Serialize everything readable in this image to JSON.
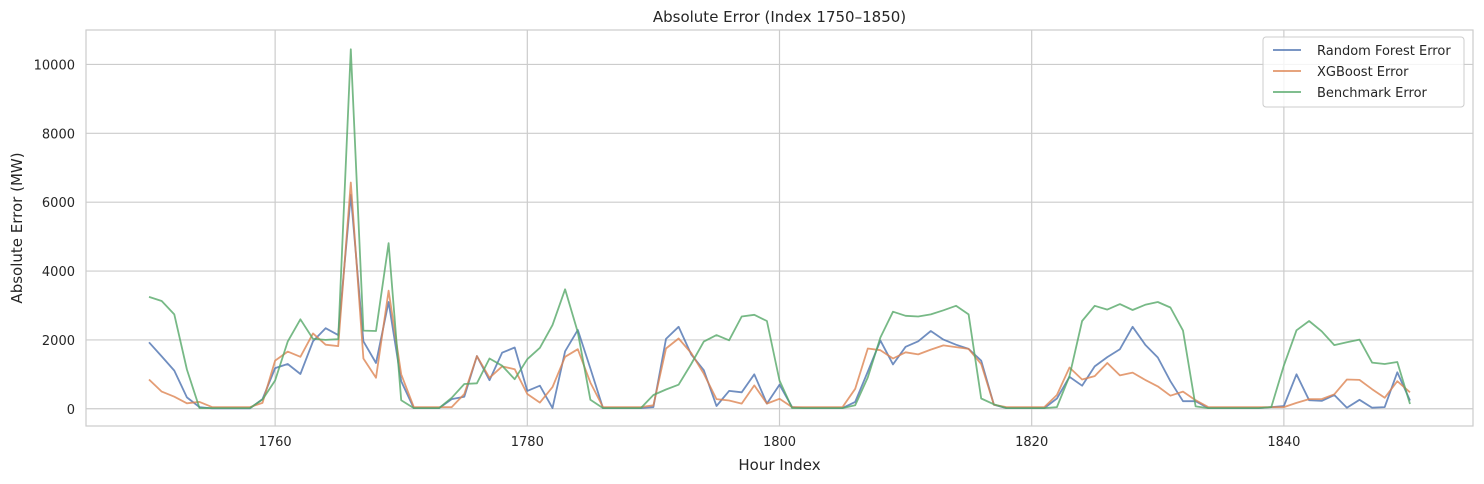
{
  "chart_data": {
    "type": "line",
    "title": "Absolute Error (Index 1750–1850)",
    "xlabel": "Hour Index",
    "ylabel": "Absolute Error (MW)",
    "xlim": [
      1745,
      1855
    ],
    "ylim": [
      -500,
      11000
    ],
    "xticks": [
      1760,
      1780,
      1800,
      1820,
      1840
    ],
    "yticks": [
      0,
      2000,
      4000,
      6000,
      8000,
      10000
    ],
    "grid": true,
    "legend_position": "top-right",
    "x_start": 1750,
    "series": [
      {
        "name": "Random Forest Error",
        "color": "#4c72b0",
        "values": [
          1930,
          1520,
          1110,
          330,
          50,
          10,
          10,
          10,
          10,
          280,
          1180,
          1300,
          1010,
          1960,
          2340,
          2140,
          6210,
          1960,
          1330,
          3100,
          800,
          20,
          20,
          20,
          280,
          350,
          1530,
          830,
          1630,
          1780,
          520,
          670,
          20,
          1670,
          2290,
          1170,
          20,
          20,
          20,
          20,
          50,
          2030,
          2380,
          1580,
          1120,
          80,
          520,
          480,
          1000,
          150,
          700,
          50,
          20,
          20,
          20,
          20,
          200,
          1080,
          1980,
          1290,
          1800,
          1960,
          2260,
          2010,
          1860,
          1740,
          1400,
          120,
          20,
          20,
          20,
          20,
          300,
          930,
          670,
          1230,
          1500,
          1730,
          2380,
          1860,
          1490,
          800,
          220,
          220,
          20,
          20,
          20,
          20,
          20,
          50,
          80,
          1000,
          250,
          230,
          400,
          30,
          260,
          30,
          50,
          1060,
          240
        ]
      },
      {
        "name": "XGBoost Error",
        "color": "#dd8452",
        "values": [
          850,
          500,
          350,
          160,
          200,
          50,
          50,
          50,
          50,
          170,
          1400,
          1660,
          1510,
          2190,
          1860,
          1820,
          6570,
          1460,
          900,
          3430,
          1000,
          50,
          50,
          50,
          50,
          430,
          1530,
          900,
          1230,
          1150,
          430,
          180,
          630,
          1510,
          1730,
          760,
          50,
          50,
          50,
          50,
          100,
          1750,
          2040,
          1620,
          1020,
          280,
          240,
          150,
          680,
          150,
          290,
          50,
          50,
          50,
          50,
          50,
          580,
          1750,
          1700,
          1460,
          1640,
          1580,
          1720,
          1840,
          1790,
          1740,
          1300,
          120,
          50,
          50,
          50,
          50,
          400,
          1200,
          850,
          950,
          1330,
          970,
          1050,
          840,
          650,
          380,
          500,
          250,
          50,
          50,
          50,
          50,
          50,
          50,
          50,
          170,
          280,
          280,
          420,
          850,
          840,
          570,
          320,
          800,
          480
        ]
      },
      {
        "name": "Benchmark Error",
        "color": "#55a868",
        "values": [
          3250,
          3130,
          2740,
          1140,
          20,
          20,
          20,
          20,
          20,
          270,
          820,
          1950,
          2600,
          2030,
          2000,
          2020,
          10440,
          2270,
          2260,
          4810,
          250,
          20,
          20,
          20,
          320,
          720,
          740,
          1460,
          1250,
          860,
          1440,
          1770,
          2430,
          3470,
          2220,
          260,
          20,
          20,
          20,
          20,
          400,
          560,
          700,
          1300,
          1950,
          2140,
          1990,
          2680,
          2730,
          2550,
          820,
          20,
          20,
          20,
          20,
          20,
          100,
          910,
          2070,
          2820,
          2700,
          2680,
          2740,
          2860,
          2990,
          2740,
          300,
          130,
          20,
          20,
          20,
          20,
          50,
          950,
          2550,
          2990,
          2880,
          3040,
          2870,
          3020,
          3100,
          2940,
          2270,
          70,
          20,
          20,
          20,
          20,
          20,
          50,
          1260,
          2280,
          2550,
          2250,
          1850,
          1930,
          2010,
          1340,
          1300,
          1360,
          140
        ]
      }
    ]
  }
}
